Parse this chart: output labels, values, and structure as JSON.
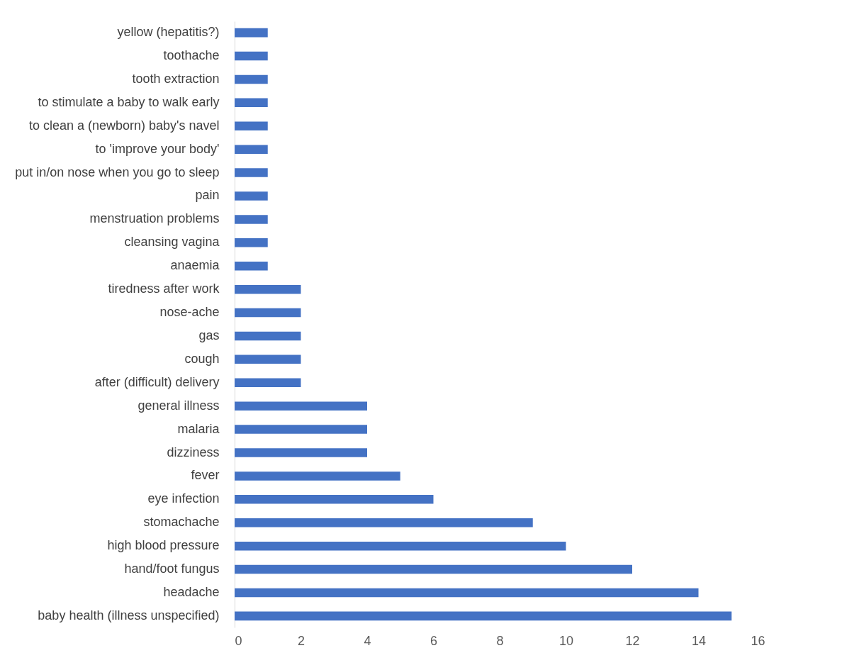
{
  "chart_data": {
    "type": "bar",
    "orientation": "horizontal",
    "categories": [
      "yellow (hepatitis?)",
      "toothache",
      "tooth extraction",
      "to stimulate a baby to walk early",
      "to clean a (newborn) baby's navel",
      "to 'improve your body'",
      "put in/on nose when you go to sleep",
      "pain",
      "menstruation problems",
      "cleansing vagina",
      "anaemia",
      "tiredness after work",
      "nose-ache",
      "gas",
      "cough",
      "after (difficult) delivery",
      "general illness",
      "malaria",
      "dizziness",
      "fever",
      "eye infection",
      "stomachache",
      "high blood pressure",
      "hand/foot fungus",
      "headache",
      "baby health (illness unspecified)"
    ],
    "values": [
      1,
      1,
      1,
      1,
      1,
      1,
      1,
      1,
      1,
      1,
      1,
      2,
      2,
      2,
      2,
      2,
      4,
      4,
      4,
      5,
      6,
      9,
      10,
      12,
      14,
      15
    ],
    "color": "#4472c4",
    "xlim": [
      0,
      16
    ],
    "xticks": [
      0,
      2,
      4,
      6,
      8,
      10,
      12,
      14,
      16
    ],
    "grid": false
  }
}
